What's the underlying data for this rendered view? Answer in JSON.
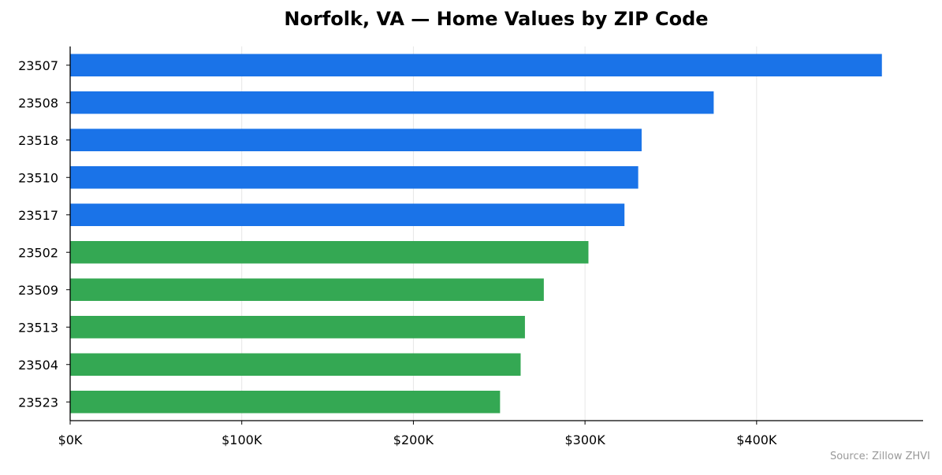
{
  "chart_data": {
    "type": "bar",
    "orientation": "horizontal",
    "title": "Norfolk, VA — Home Values by ZIP Code",
    "xlabel": "",
    "ylabel": "",
    "categories": [
      "23507",
      "23508",
      "23518",
      "23510",
      "23517",
      "23502",
      "23509",
      "23513",
      "23504",
      "23523"
    ],
    "values": [
      473000,
      375000,
      333000,
      331000,
      323000,
      302000,
      276000,
      265000,
      262500,
      250500
    ],
    "bar_colors": [
      "#1a73e8",
      "#1a73e8",
      "#1a73e8",
      "#1a73e8",
      "#1a73e8",
      "#34a853",
      "#34a853",
      "#34a853",
      "#34a853",
      "#34a853"
    ],
    "xlim": [
      0,
      497000
    ],
    "x_ticks": [
      0,
      100000,
      200000,
      300000,
      400000
    ],
    "x_tick_labels": [
      "$0K",
      "$100K",
      "$200K",
      "$300K",
      "$400K"
    ],
    "grid": "vertical",
    "legend": "none",
    "source_note": "Source: Zillow ZHVI"
  }
}
